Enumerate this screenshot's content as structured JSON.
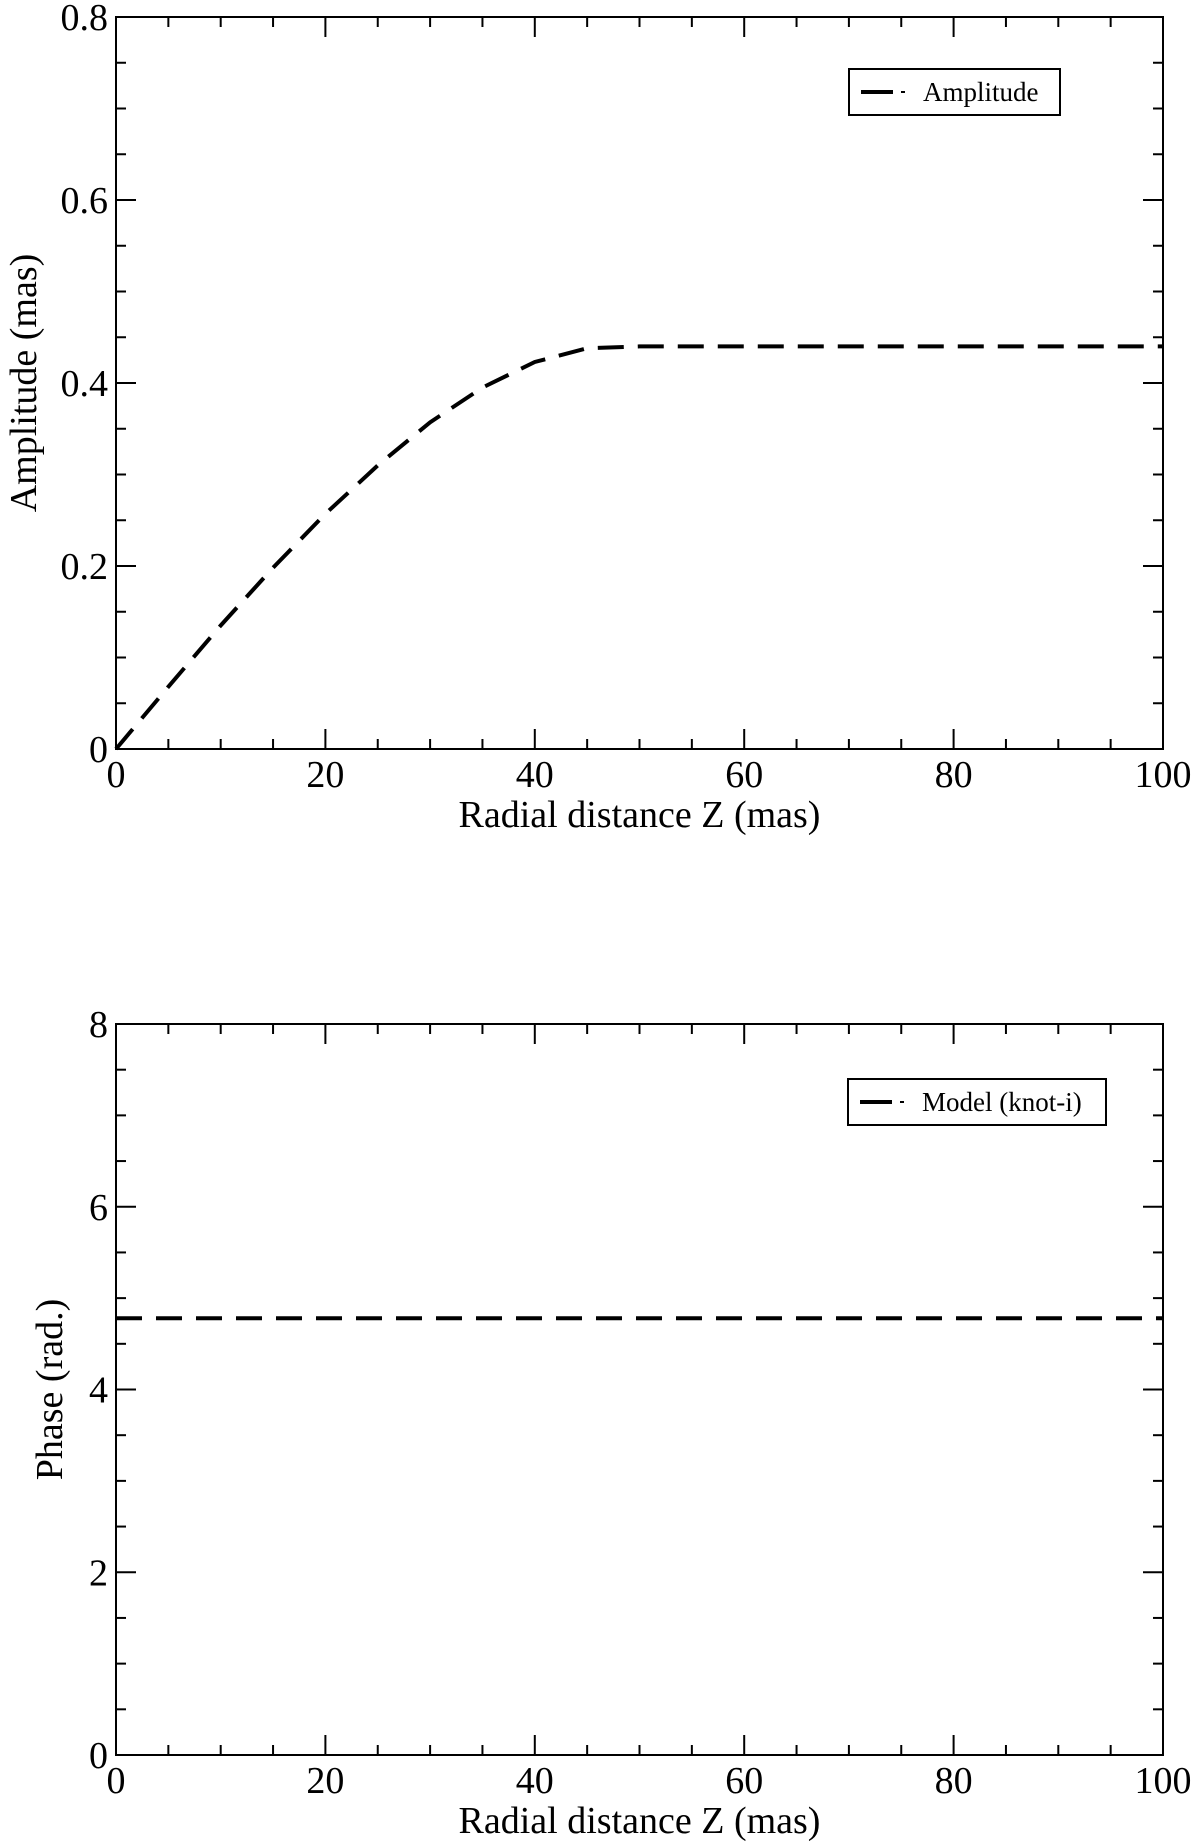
{
  "chart_data": [
    {
      "type": "line",
      "title": "",
      "xlabel": "Radial distance Z (mas)",
      "ylabel": "Amplitude (mas)",
      "xlim": [
        0,
        100
      ],
      "ylim": [
        0,
        0.8
      ],
      "xticks": [
        "0",
        "20",
        "40",
        "60",
        "80",
        "100"
      ],
      "yticks": [
        "0",
        "0.2",
        "0.4",
        "0.6",
        "0.8"
      ],
      "grid": false,
      "legend_position": "top-right",
      "series": [
        {
          "name": "Amplitude",
          "line_style": "dashed",
          "color": "#000000",
          "x": [
            0,
            5,
            10,
            15,
            20,
            25,
            30,
            35,
            40,
            45,
            50,
            60,
            70,
            80,
            90,
            100
          ],
          "y": [
            0,
            0.068,
            0.135,
            0.198,
            0.257,
            0.31,
            0.357,
            0.395,
            0.423,
            0.438,
            0.44,
            0.44,
            0.44,
            0.44,
            0.44,
            0.44
          ]
        }
      ]
    },
    {
      "type": "line",
      "title": "",
      "xlabel": "Radial distance Z (mas)",
      "ylabel": "Phase (rad.)",
      "xlim": [
        0,
        100
      ],
      "ylim": [
        0,
        8
      ],
      "xticks": [
        "0",
        "20",
        "40",
        "60",
        "80",
        "100"
      ],
      "yticks": [
        "0",
        "2",
        "4",
        "6",
        "8"
      ],
      "grid": false,
      "legend_position": "top-right",
      "series": [
        {
          "name": "Model (knot-i)",
          "line_style": "dashed",
          "color": "#000000",
          "x": [
            0,
            100
          ],
          "y": [
            4.78,
            4.78
          ]
        }
      ]
    }
  ]
}
